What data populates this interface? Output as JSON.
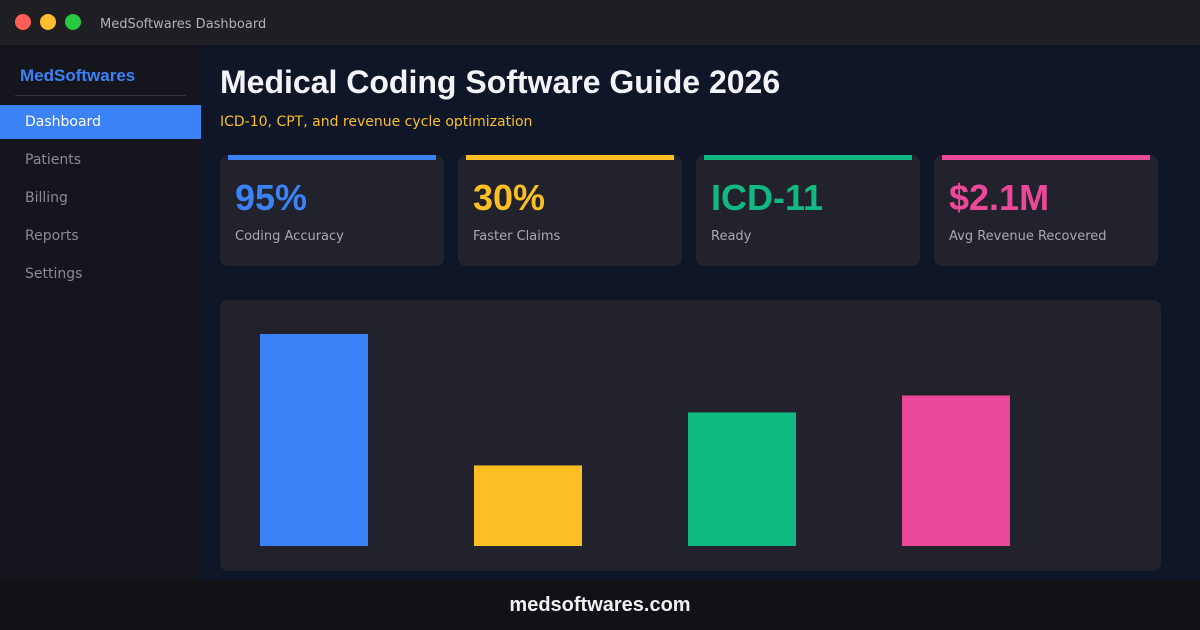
{
  "window": {
    "title": "MedSoftwares Dashboard",
    "controls": [
      {
        "name": "close",
        "color": "#ff5f57"
      },
      {
        "name": "minimize",
        "color": "#febc2e"
      },
      {
        "name": "maximize",
        "color": "#28c840"
      }
    ]
  },
  "sidebar": {
    "brand": "MedSoftwares",
    "items": [
      {
        "label": "Dashboard",
        "active": true
      },
      {
        "label": "Patients"
      },
      {
        "label": "Billing"
      },
      {
        "label": "Reports"
      },
      {
        "label": "Settings"
      }
    ]
  },
  "header": {
    "title": "Medical Coding Software Guide 2026",
    "subtitle": "ICD-10, CPT, and revenue cycle optimization"
  },
  "stats": [
    {
      "value": "95%",
      "label": "Coding Accuracy",
      "color": "#3b82f6"
    },
    {
      "value": "30%",
      "label": "Faster Claims",
      "color": "#fbbf24"
    },
    {
      "value": "ICD-11",
      "label": "Ready",
      "color": "#10b981"
    },
    {
      "value": "$2.1M",
      "label": "Avg Revenue Recovered",
      "color": "#ec4899"
    }
  ],
  "chart_data": {
    "type": "bar",
    "title": "",
    "xlabel": "",
    "ylabel": "",
    "categories": [
      "Coding Accuracy",
      "Faster Claims",
      "ICD-11",
      "Avg Revenue Recovered"
    ],
    "values": [
      100,
      38,
      63,
      71
    ],
    "colors": [
      "#3b82f6",
      "#fbbf24",
      "#10b981",
      "#ec4899"
    ],
    "ylim": [
      0,
      100
    ],
    "grid": false
  },
  "footer": {
    "domain": "medsoftwares.com"
  }
}
